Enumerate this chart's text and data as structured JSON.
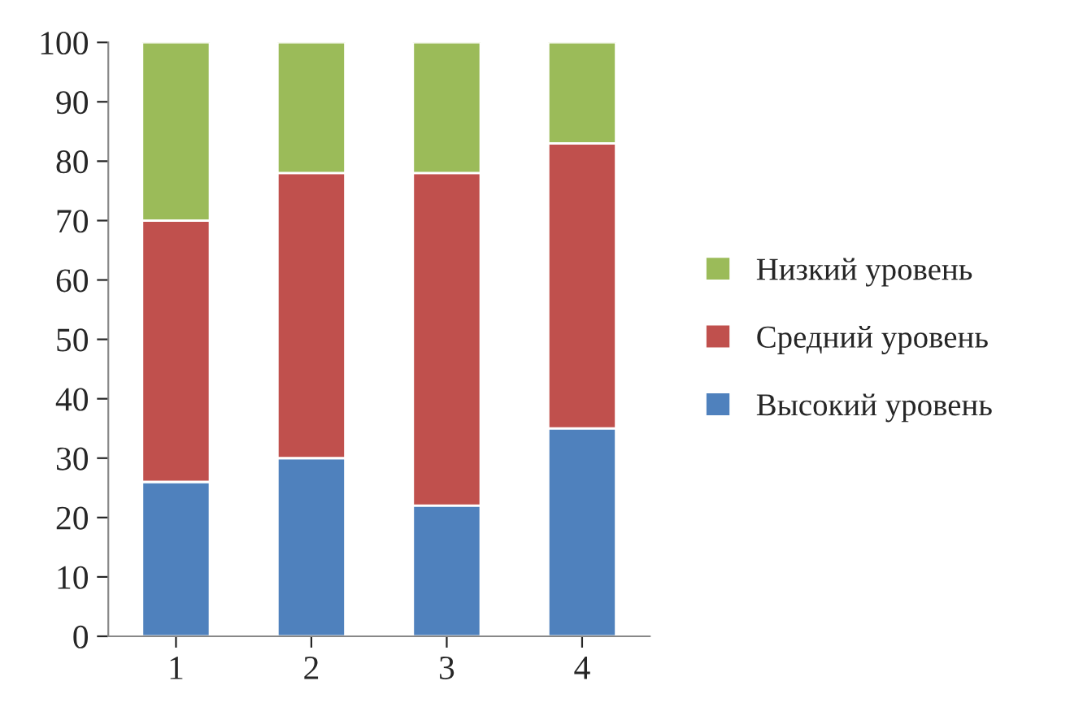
{
  "chart_data": {
    "type": "bar",
    "stacked": true,
    "categories": [
      "1",
      "2",
      "3",
      "4"
    ],
    "series": [
      {
        "name": "Высокий уровень",
        "color": "#4f81bd",
        "values": [
          26,
          30,
          22,
          35
        ]
      },
      {
        "name": "Средний уровень",
        "color": "#c0504d",
        "values": [
          44,
          48,
          56,
          48
        ]
      },
      {
        "name": "Низкий уровень",
        "color": "#9bbb59",
        "values": [
          30,
          22,
          22,
          17
        ]
      }
    ],
    "ylim": [
      0,
      100
    ],
    "yticks": [
      0,
      10,
      20,
      30,
      40,
      50,
      60,
      70,
      80,
      90,
      100
    ],
    "grid": false,
    "legend": "right"
  }
}
